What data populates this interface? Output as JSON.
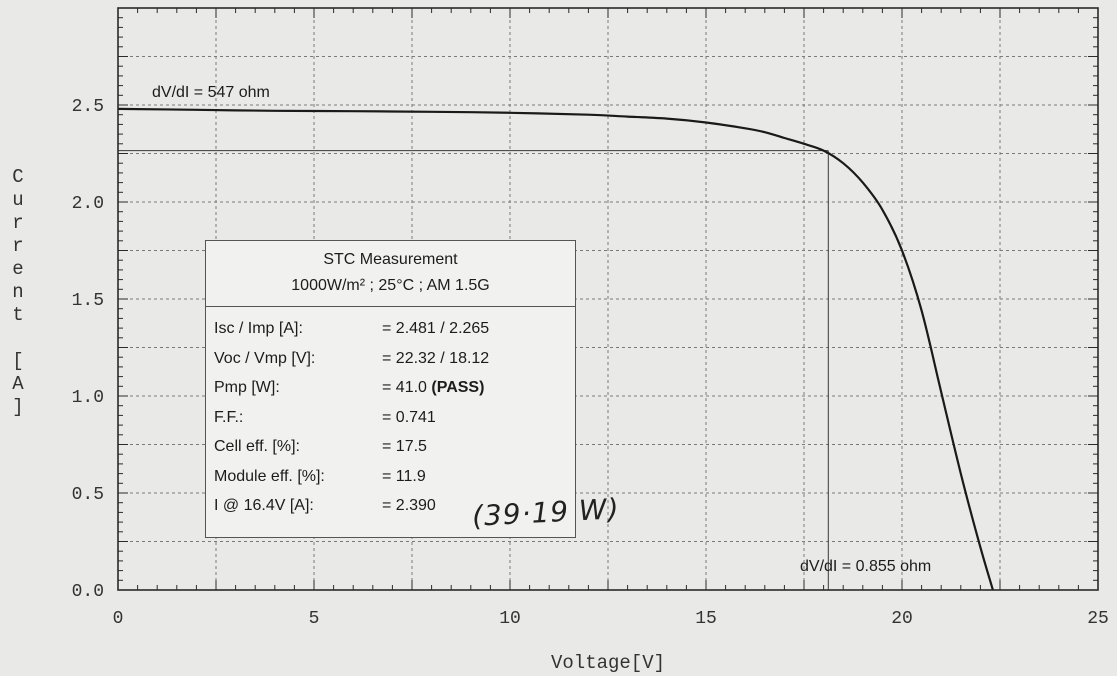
{
  "chart_data": {
    "type": "line",
    "xlabel": "Voltage[V]",
    "ylabel": "Current [A]",
    "xlim": [
      0,
      25
    ],
    "ylim": [
      0,
      3.0
    ],
    "xticks": [
      "0",
      "5",
      "10",
      "15",
      "20",
      "25"
    ],
    "yticks": [
      "0.0",
      "0.5",
      "1.0",
      "1.5",
      "2.0",
      "2.5"
    ],
    "grid": true,
    "series": [
      {
        "x": [
          0,
          2,
          4,
          6,
          8,
          10,
          12,
          13,
          14,
          15,
          16,
          16.5,
          17,
          17.5,
          18,
          18.5,
          19,
          19.5,
          20,
          20.5,
          21,
          21.5,
          22,
          22.32
        ],
        "y": [
          2.48,
          2.475,
          2.47,
          2.468,
          2.465,
          2.46,
          2.45,
          2.44,
          2.43,
          2.41,
          2.38,
          2.36,
          2.33,
          2.3,
          2.265,
          2.2,
          2.1,
          1.96,
          1.75,
          1.44,
          1.02,
          0.6,
          0.22,
          0.0
        ]
      }
    ],
    "reference_lines": {
      "vmp": 18.12,
      "imp": 2.265
    },
    "annotations": {
      "slope_isc": "dV/dI = 547 ohm",
      "slope_voc": "dV/dI = 0.855 ohm"
    }
  },
  "info_box": {
    "title": "STC Measurement",
    "conditions": "1000W/m² ;  25°C ;  AM 1.5G",
    "rows": [
      {
        "label": "Isc / Imp [A]:",
        "value": "= 2.481 / 2.265",
        "bold": ""
      },
      {
        "label": "Voc / Vmp [V]:",
        "value": "= 22.32 / 18.12",
        "bold": ""
      },
      {
        "label": "Pmp [W]:",
        "value": "= 41.0 ",
        "bold": "(PASS)"
      },
      {
        "label": "F.F.:",
        "value": "= 0.741",
        "bold": ""
      },
      {
        "label": "Cell eff. [%]:",
        "value": "= 17.5",
        "bold": ""
      },
      {
        "label": "Module eff. [%]:",
        "value": "= 11.9",
        "bold": ""
      },
      {
        "label": "I @ 16.4V [A]:",
        "value": "= 2.390",
        "bold": ""
      }
    ]
  },
  "handwritten_note": "(39·19 W)"
}
